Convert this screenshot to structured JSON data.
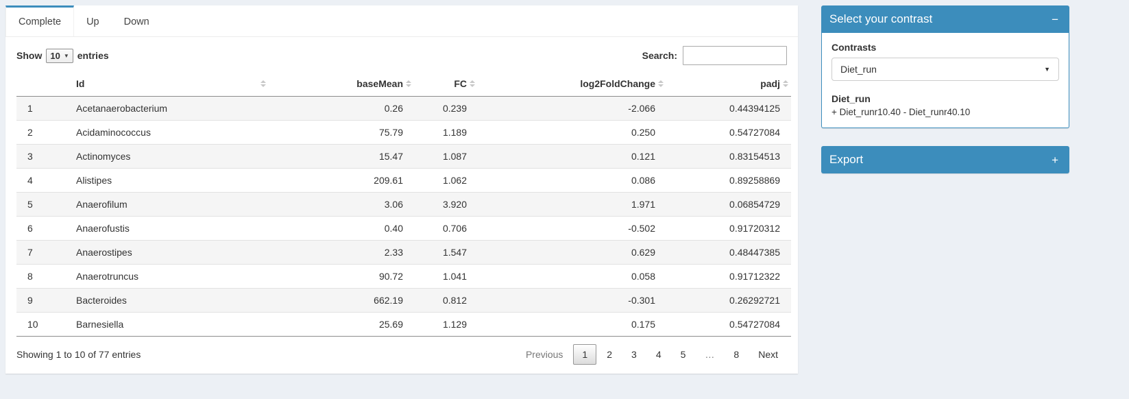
{
  "colors": {
    "primary": "#3c8dbc",
    "page_background": "#ecf0f5",
    "stripe": "#f5f5f5"
  },
  "icons": {
    "caret_glyph": "▼",
    "sort_icon": "up-down-triangles"
  },
  "tabs": [
    {
      "label": "Complete",
      "state": "active"
    },
    {
      "label": "Up",
      "state": ""
    },
    {
      "label": "Down",
      "state": ""
    }
  ],
  "controls": {
    "show_label": "Show",
    "page_length": "10",
    "entries_label": "entries",
    "search_label": "Search:",
    "search_value": ""
  },
  "table": {
    "headers": [
      {
        "label": "Id"
      },
      {
        "label": "baseMean"
      },
      {
        "label": "FC"
      },
      {
        "label": "log2FoldChange"
      },
      {
        "label": "padj"
      }
    ],
    "rows": [
      {
        "index": "1",
        "id": "Acetanaerobacterium",
        "baseMean": "0.26",
        "fc": "0.239",
        "log2fc": "-2.066",
        "padj": "0.44394125"
      },
      {
        "index": "2",
        "id": "Acidaminococcus",
        "baseMean": "75.79",
        "fc": "1.189",
        "log2fc": "0.250",
        "padj": "0.54727084"
      },
      {
        "index": "3",
        "id": "Actinomyces",
        "baseMean": "15.47",
        "fc": "1.087",
        "log2fc": "0.121",
        "padj": "0.83154513"
      },
      {
        "index": "4",
        "id": "Alistipes",
        "baseMean": "209.61",
        "fc": "1.062",
        "log2fc": "0.086",
        "padj": "0.89258869"
      },
      {
        "index": "5",
        "id": "Anaerofilum",
        "baseMean": "3.06",
        "fc": "3.920",
        "log2fc": "1.971",
        "padj": "0.06854729"
      },
      {
        "index": "6",
        "id": "Anaerofustis",
        "baseMean": "0.40",
        "fc": "0.706",
        "log2fc": "-0.502",
        "padj": "0.91720312"
      },
      {
        "index": "7",
        "id": "Anaerostipes",
        "baseMean": "2.33",
        "fc": "1.547",
        "log2fc": "0.629",
        "padj": "0.48447385"
      },
      {
        "index": "8",
        "id": "Anaerotruncus",
        "baseMean": "90.72",
        "fc": "1.041",
        "log2fc": "0.058",
        "padj": "0.91712322"
      },
      {
        "index": "9",
        "id": "Bacteroides",
        "baseMean": "662.19",
        "fc": "0.812",
        "log2fc": "-0.301",
        "padj": "0.26292721"
      },
      {
        "index": "10",
        "id": "Barnesiella",
        "baseMean": "25.69",
        "fc": "1.129",
        "log2fc": "0.175",
        "padj": "0.54727084"
      }
    ]
  },
  "footer": {
    "info": "Showing 1 to 10 of 77 entries",
    "pagination": [
      {
        "label": "Previous",
        "state": "disabled"
      },
      {
        "label": "1",
        "state": "active"
      },
      {
        "label": "2",
        "state": ""
      },
      {
        "label": "3",
        "state": ""
      },
      {
        "label": "4",
        "state": ""
      },
      {
        "label": "5",
        "state": ""
      },
      {
        "label": "…",
        "state": "disabled"
      },
      {
        "label": "8",
        "state": ""
      },
      {
        "label": "Next",
        "state": ""
      }
    ]
  },
  "contrast_box": {
    "title": "Select your contrast",
    "collapse_icon": "−",
    "contrasts_label": "Contrasts",
    "selected_contrast": "Diet_run",
    "contrast_name": "Diet_run",
    "contrast_formula": "+ Diet_runr10.40 - Diet_runr40.10"
  },
  "export_box": {
    "title": "Export",
    "expand_icon": "+"
  }
}
